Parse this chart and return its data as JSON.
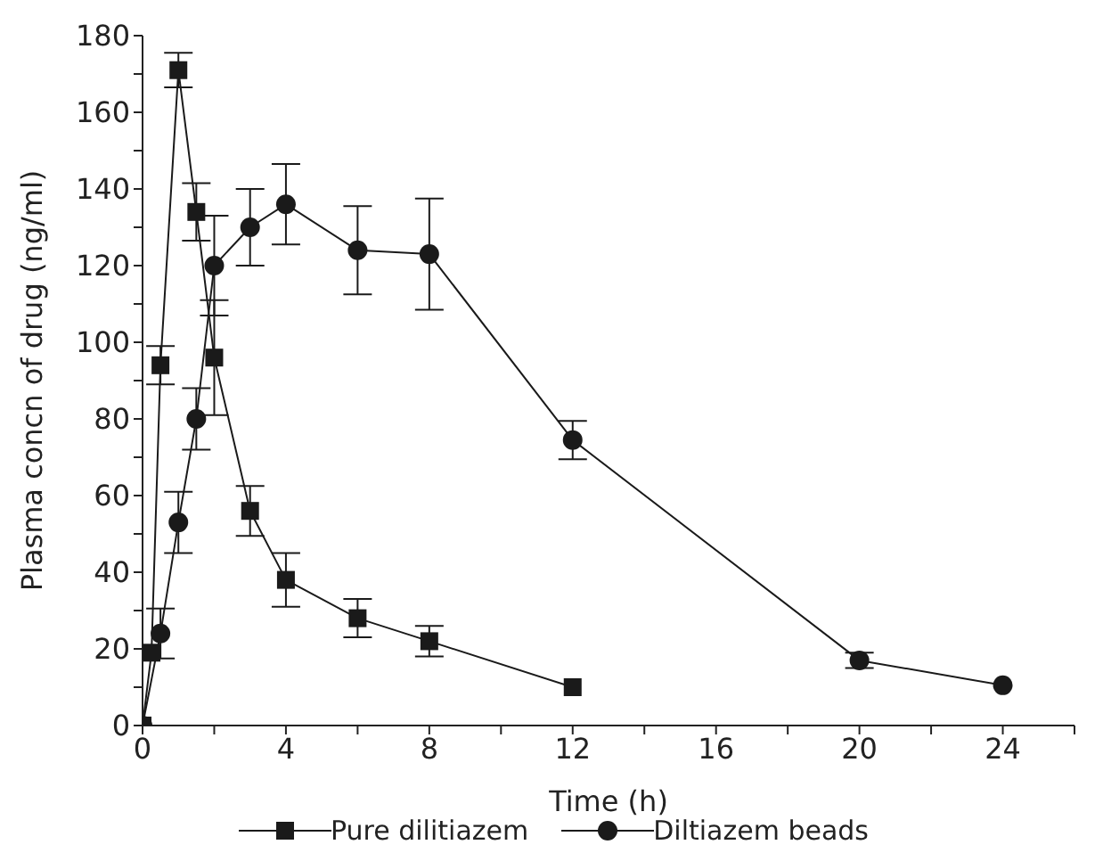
{
  "chart_data": {
    "type": "line",
    "xlabel": "Time (h)",
    "ylabel": "Plasma concn of drug (ng/ml)",
    "xlim": [
      0,
      26
    ],
    "xticks": [
      0,
      {
        "value": 2,
        "label": null
      },
      4,
      {
        "value": 6,
        "label": null
      },
      8,
      {
        "value": 10,
        "label": null
      },
      12,
      {
        "value": 14,
        "label": null
      },
      16,
      {
        "value": 18,
        "label": null
      },
      20,
      {
        "value": 22,
        "label": null
      },
      24,
      {
        "value": 26,
        "label": null
      }
    ],
    "ylim": [
      0,
      180
    ],
    "yticks": [
      0,
      {
        "value": 10,
        "label": null
      },
      20,
      {
        "value": 30,
        "label": null
      },
      40,
      {
        "value": 50,
        "label": null
      },
      60,
      {
        "value": 70,
        "label": null
      },
      80,
      {
        "value": 90,
        "label": null
      },
      100,
      {
        "value": 110,
        "label": null
      },
      120,
      {
        "value": 130,
        "label": null
      },
      140,
      {
        "value": 150,
        "label": null
      },
      160,
      {
        "value": 170,
        "label": null
      },
      180
    ],
    "grid": false,
    "legend": "bottom",
    "line_style": "solid",
    "series": [
      {
        "name": "Pure dilitiazem",
        "color": "#1a1a1a",
        "marker": "square",
        "x": [
          0,
          0.25,
          0.5,
          1,
          1.5,
          2,
          3,
          4,
          6,
          8,
          12
        ],
        "values": [
          0,
          19,
          94,
          171,
          134,
          96,
          56,
          38,
          28,
          22,
          10
        ],
        "errors": [
          null,
          null,
          5,
          4.5,
          7.5,
          15,
          6.5,
          7,
          5,
          4,
          null
        ]
      },
      {
        "name": "Diltiazem beads",
        "color": "#1a1a1a",
        "marker": "circle",
        "x": [
          0,
          0.5,
          1,
          1.5,
          2,
          3,
          4,
          6,
          8,
          12,
          20,
          24
        ],
        "values": [
          0,
          24,
          53,
          80,
          120,
          130,
          136,
          124,
          123,
          74.5,
          17,
          10.5
        ],
        "errors": [
          null,
          6.5,
          8,
          8,
          13,
          10,
          10.5,
          11.5,
          14.5,
          5,
          2,
          null
        ]
      }
    ]
  }
}
